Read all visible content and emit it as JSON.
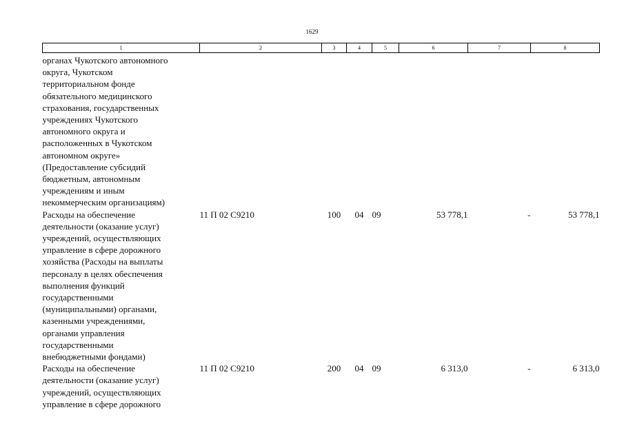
{
  "page": {
    "number": "1629"
  },
  "table": {
    "headers": [
      "1",
      "2",
      "3",
      "4",
      "5",
      "6",
      "7",
      "8"
    ],
    "continuation": {
      "lines": [
        "органах Чукотского автономного",
        "округа, Чукотском",
        "территориальном фонде",
        "обязательного медицинского",
        "страхования, государственных",
        "учреждениях Чукотского",
        "автономного округа и",
        "расположенных в Чукотском",
        "автономном округе»",
        "(Предоставление субсидий",
        "бюджетным, автономным",
        "учреждениям и иным",
        "некоммерческим организациям)"
      ]
    },
    "rows": [
      {
        "lines": [
          "Расходы на обеспечение",
          "деятельности (оказание услуг)",
          "учреждений, осуществляющих",
          "управление в сфере дорожного",
          "хозяйства (Расходы на выплаты",
          "персоналу в целях обеспечения",
          "выполнения функций",
          "государственными",
          "(муниципальными) органами,",
          "казенными учреждениями,",
          "органами управления",
          "государственными",
          "внебюджетными фондами)"
        ],
        "code": "11 П 02 С9210",
        "vr": "100",
        "rz": "04",
        "pr": "09",
        "sum": "53 778,1",
        "change": "-",
        "total": "53 778,1"
      },
      {
        "lines": [
          "Расходы на обеспечение",
          "деятельности (оказание услуг)",
          "учреждений, осуществляющих",
          "управление в сфере дорожного"
        ],
        "code": "11 П 02 С9210",
        "vr": "200",
        "rz": "04",
        "pr": "09",
        "sum": "6 313,0",
        "change": "-",
        "total": "6 313,0"
      }
    ]
  }
}
